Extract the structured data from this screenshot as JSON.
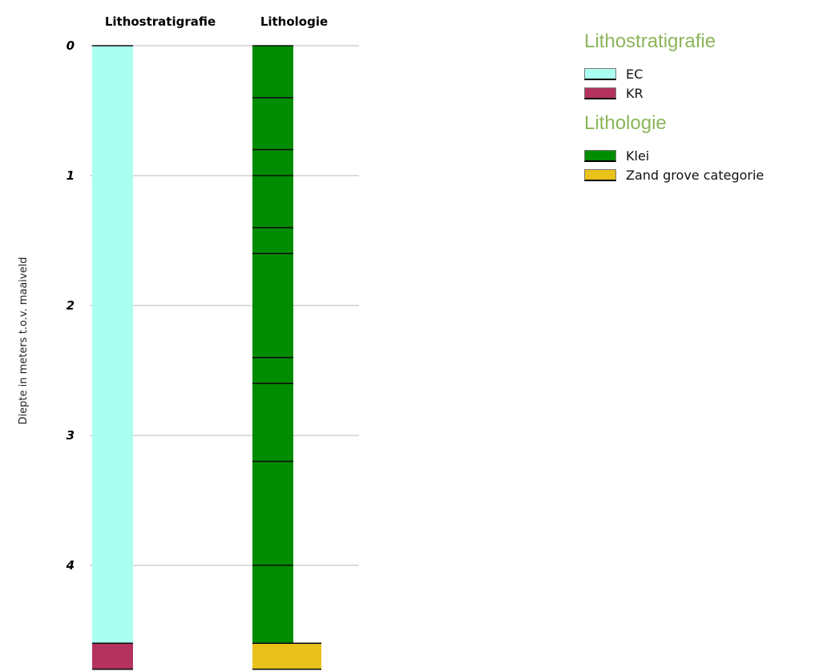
{
  "chart_data": {
    "type": "bar",
    "ylabel": "Diepte in meters t.o.v. maaiveld",
    "ylim": [
      0,
      4.85
    ],
    "y_inverted": true,
    "grid": true,
    "y_ticks": [
      0,
      1,
      2,
      3,
      4
    ],
    "y_tick_labels": [
      "0",
      "1",
      "2",
      "3",
      "4"
    ],
    "columns": [
      {
        "title": "Lithostratigrafie",
        "layers": [
          {
            "top": 0,
            "bottom": 4.6,
            "unit": "EC"
          },
          {
            "top": 4.6,
            "bottom": 4.8,
            "unit": "KR"
          }
        ]
      },
      {
        "title": "Lithologie",
        "layers": [
          {
            "top": 0,
            "bottom": 0.4,
            "unit": "Klei"
          },
          {
            "top": 0.4,
            "bottom": 0.8,
            "unit": "Klei"
          },
          {
            "top": 0.8,
            "bottom": 1.0,
            "unit": "Klei"
          },
          {
            "top": 1.0,
            "bottom": 1.4,
            "unit": "Klei"
          },
          {
            "top": 1.4,
            "bottom": 1.6,
            "unit": "Klei"
          },
          {
            "top": 1.6,
            "bottom": 2.4,
            "unit": "Klei"
          },
          {
            "top": 2.4,
            "bottom": 2.6,
            "unit": "Klei"
          },
          {
            "top": 2.6,
            "bottom": 3.2,
            "unit": "Klei"
          },
          {
            "top": 3.2,
            "bottom": 4.0,
            "unit": "Klei"
          },
          {
            "top": 4.0,
            "bottom": 4.6,
            "unit": "Klei"
          },
          {
            "top": 4.6,
            "bottom": 4.8,
            "unit": "Zand grove categorie"
          }
        ]
      }
    ]
  },
  "legend": {
    "groups": [
      {
        "title": "Lithostratigrafie",
        "items": [
          {
            "label": "EC",
            "color": "#aafff0"
          },
          {
            "label": "KR",
            "color": "#b4335e"
          }
        ]
      },
      {
        "title": "Lithologie",
        "items": [
          {
            "label": "Klei",
            "color": "#008c00"
          },
          {
            "label": "Zand grove categorie",
            "color": "#e8c21a"
          }
        ]
      }
    ]
  }
}
